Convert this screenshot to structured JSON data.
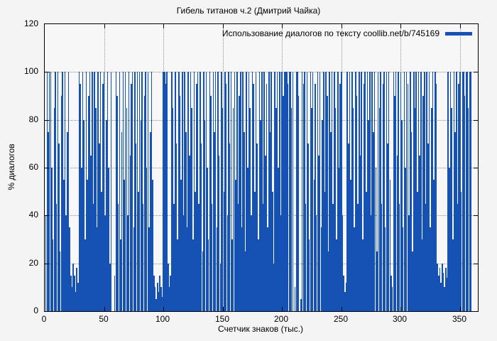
{
  "chart_data": {
    "type": "bar",
    "title": "Гибель титанов ч.2 (Дмитрий Чайка)",
    "xlabel": "Счетчик знаков (тыс.)",
    "ylabel": "% диалогов",
    "xlim": [
      0,
      365
    ],
    "ylim": [
      0,
      120
    ],
    "x_ticks": [
      0,
      50,
      100,
      150,
      200,
      250,
      300,
      350
    ],
    "y_ticks": [
      0,
      20,
      40,
      60,
      80,
      100,
      120
    ],
    "grid": true,
    "grid_style": "dotted",
    "legend_position": "top-right-inside",
    "background_color": "#f4f4f4",
    "series": [
      {
        "name": "Использование диалогов по тексту coollib.net/b/745169",
        "color": "#1552b4",
        "x_start": 0,
        "x_step": 1,
        "values": [
          0,
          40,
          100,
          75,
          100,
          100,
          60,
          30,
          85,
          100,
          45,
          100,
          70,
          25,
          90,
          100,
          55,
          100,
          40,
          75,
          100,
          35,
          15,
          10,
          20,
          15,
          8,
          18,
          12,
          100,
          95,
          60,
          100,
          80,
          30,
          100,
          55,
          90,
          100,
          65,
          100,
          45,
          100,
          85,
          35,
          100,
          70,
          100,
          50,
          95,
          100,
          40,
          80,
          100,
          60,
          20,
          100,
          0,
          0,
          15,
          100,
          90,
          45,
          100,
          30,
          75,
          100,
          55,
          100,
          85,
          40,
          100,
          65,
          95,
          100,
          35,
          100,
          70,
          100,
          50,
          100,
          80,
          100,
          45,
          90,
          100,
          60,
          100,
          35,
          75,
          100,
          55,
          15,
          10,
          5,
          12,
          8,
          15,
          10,
          6,
          100,
          100,
          95,
          100,
          20,
          10,
          15,
          100,
          85,
          45,
          100,
          70,
          30,
          100,
          90,
          55,
          100,
          40,
          100,
          75,
          35,
          100,
          65,
          100,
          85,
          30,
          100,
          50,
          95,
          100,
          45,
          100,
          70,
          25,
          100,
          80,
          100,
          60,
          30,
          100,
          90,
          45,
          100,
          75,
          100,
          35,
          100,
          65,
          20,
          100,
          85,
          50,
          100,
          95,
          40,
          100,
          70,
          100,
          30,
          85,
          100,
          55,
          100,
          45,
          90,
          100,
          35,
          100,
          75,
          25,
          100,
          60,
          100,
          85,
          40,
          100,
          95,
          50,
          100,
          70,
          30,
          100,
          80,
          100,
          45,
          100,
          65,
          95,
          35,
          100,
          75,
          100,
          50,
          20,
          100,
          85,
          100,
          60,
          100,
          40,
          100,
          90,
          100,
          100,
          100,
          95,
          100,
          100,
          85,
          100,
          0,
          10,
          100,
          100,
          90,
          0,
          5,
          100,
          95,
          100,
          45,
          100,
          70,
          30,
          100,
          85,
          100,
          55,
          95,
          40,
          100,
          65,
          100,
          35,
          80,
          100,
          50,
          100,
          90,
          25,
          100,
          75,
          100,
          45,
          100,
          85,
          30,
          100,
          60,
          95,
          100,
          40,
          15,
          8,
          12,
          100,
          70,
          100,
          55,
          100,
          85,
          35,
          100,
          90,
          45,
          100,
          65,
          100,
          30,
          95,
          100,
          50,
          100,
          80,
          100,
          40,
          100,
          75,
          100,
          60,
          25,
          100,
          85,
          100,
          45,
          95,
          100,
          35,
          100,
          70,
          100,
          55,
          15,
          10,
          100,
          90,
          100,
          65,
          100,
          45,
          100,
          80,
          35,
          100,
          60,
          100,
          95,
          40,
          100,
          75,
          25,
          100,
          85,
          100,
          50,
          100,
          65,
          100,
          30,
          90,
          100,
          45,
          100,
          70,
          100,
          35,
          85,
          100,
          55,
          100,
          95,
          20,
          15,
          18,
          12,
          20,
          16,
          10,
          18,
          14,
          100,
          60,
          100,
          85,
          30,
          100,
          75,
          100,
          45,
          95,
          100,
          50,
          100,
          100,
          90,
          100,
          100,
          85,
          100,
          100,
          0
        ]
      }
    ]
  }
}
